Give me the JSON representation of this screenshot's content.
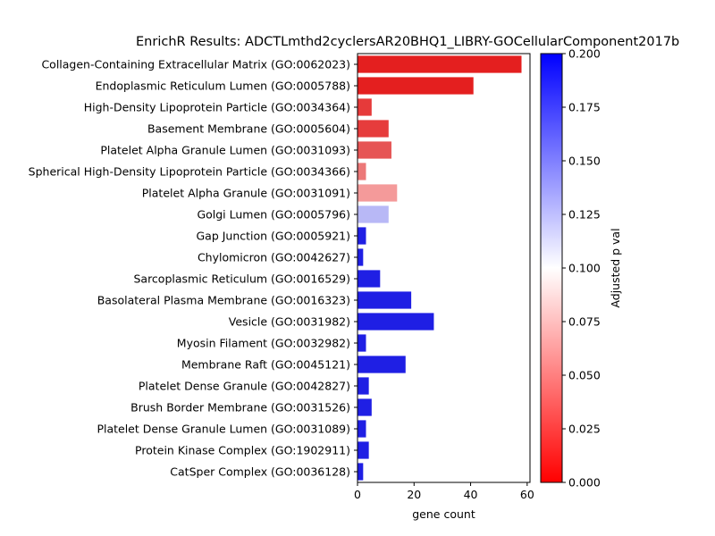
{
  "chart_data": {
    "type": "bar",
    "orientation": "horizontal",
    "title": "EnrichR Results: ADCTLmthd2cyclersAR20BHQ1_LIBRY-GOCellularComponent2017b",
    "xlabel": "gene count",
    "ylabel": "",
    "xlim": [
      0,
      61
    ],
    "xticks": [
      0,
      20,
      40,
      60
    ],
    "categories": [
      "Collagen-Containing Extracellular Matrix (GO:0062023)",
      "Endoplasmic Reticulum Lumen (GO:0005788)",
      "High-Density Lipoprotein Particle (GO:0034364)",
      "Basement Membrane (GO:0005604)",
      "Platelet Alpha Granule Lumen (GO:0031093)",
      "Spherical High-Density Lipoprotein Particle (GO:0034366)",
      "Platelet Alpha Granule (GO:0031091)",
      "Golgi Lumen (GO:0005796)",
      "Gap Junction (GO:0005921)",
      "Chylomicron (GO:0042627)",
      "Sarcoplasmic Reticulum (GO:0016529)",
      "Basolateral Plasma Membrane (GO:0016323)",
      "Vesicle (GO:0031982)",
      "Myosin Filament (GO:0032982)",
      "Membrane Raft (GO:0045121)",
      "Platelet Dense Granule (GO:0042827)",
      "Brush Border Membrane (GO:0031526)",
      "Platelet Dense Granule Lumen (GO:0031089)",
      "Protein Kinase Complex (GO:1902911)",
      "CatSper Complex (GO:0036128)"
    ],
    "values": [
      58,
      41,
      5,
      11,
      12,
      3,
      14,
      11,
      3,
      2,
      8,
      19,
      27,
      3,
      17,
      4,
      5,
      3,
      4,
      2
    ],
    "bar_colors": [
      "#e41f1f",
      "#e41f1f",
      "#e63a3a",
      "#e63c3c",
      "#e65555",
      "#ec7878",
      "#f49a9a",
      "#b8b8f6",
      "#1f1fe4",
      "#1f1fe4",
      "#1f1fe4",
      "#1f1fe4",
      "#1f1fe4",
      "#1f1fe4",
      "#1f1fe4",
      "#1f1fe4",
      "#1f1fe4",
      "#1f1fe4",
      "#1f1fe4",
      "#1f1fe4"
    ],
    "colorbar": {
      "label": "Adjusted p val",
      "min": 0.0,
      "max": 0.2,
      "ticks": [
        "0.000",
        "0.025",
        "0.050",
        "0.075",
        "0.100",
        "0.125",
        "0.150",
        "0.175",
        "0.200"
      ],
      "colormap": "bwr_r",
      "color_low": "#ff0000",
      "color_mid": "#ffffff",
      "color_high": "#0000ff"
    },
    "grid": false,
    "legend": "none"
  }
}
